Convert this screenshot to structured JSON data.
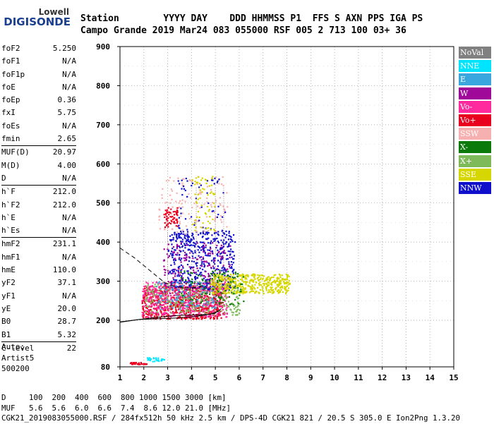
{
  "logo": {
    "line1": "Lowell",
    "line2": "DIGISONDE"
  },
  "header": {
    "line1": "Station        YYYY DAY    DDD HHMMSS P1  FFS S AXN PPS IGA PS",
    "line2": "Campo Grande 2019 Mar24 083 055000 RSF 005 2 713 100 03+ 36"
  },
  "params": {
    "group1": [
      {
        "label": "foF2",
        "value": "5.250"
      },
      {
        "label": "foF1",
        "value": "N/A"
      },
      {
        "label": "foF1p",
        "value": "N/A"
      },
      {
        "label": "foE",
        "value": "N/A"
      },
      {
        "label": "foEp",
        "value": "0.36"
      },
      {
        "label": "fxI",
        "value": "5.75"
      },
      {
        "label": "foEs",
        "value": "N/A"
      },
      {
        "label": "fmin",
        "value": "2.65"
      }
    ],
    "group2": [
      {
        "label": "MUF(D)",
        "value": "20.97"
      },
      {
        "label": "M(D)",
        "value": "4.00"
      },
      {
        "label": "D",
        "value": "N/A"
      }
    ],
    "group3": [
      {
        "label": "h`F",
        "value": "212.0"
      },
      {
        "label": "h`F2",
        "value": "212.0"
      },
      {
        "label": "h`E",
        "value": "N/A"
      },
      {
        "label": "h`Es",
        "value": "N/A"
      }
    ],
    "group4": [
      {
        "label": "hmF2",
        "value": "231.1"
      },
      {
        "label": "hmF1",
        "value": "N/A"
      },
      {
        "label": "hmE",
        "value": "110.0"
      },
      {
        "label": "yF2",
        "value": "37.1"
      },
      {
        "label": "yF1",
        "value": "N/A"
      },
      {
        "label": "yE",
        "value": "20.0"
      },
      {
        "label": "B0",
        "value": "28.7"
      },
      {
        "label": "B1",
        "value": "5.32"
      }
    ],
    "group5": [
      {
        "label": "C-level",
        "value": "22"
      }
    ]
  },
  "auto": {
    "line1": "Auto:",
    "line2": "Artist5",
    "line3": "500200"
  },
  "footer": {
    "line1": "D     100  200  400  600  800 1000 1500 3000 [km]",
    "line2": "MUF   5.6  5.6  6.0  6.6  7.4  8.6 12.0 21.0 [MHz]",
    "line3": "CGK21_2019083055000.RSF / 284fx512h 50 kHz 2.5 km / DPS-4D CGK21 821 / 20.5 S 305.0 E Ion2Png 1.3.20"
  },
  "legend": [
    {
      "label": "NoVal",
      "color": "#808080"
    },
    {
      "label": "NNE",
      "color": "#00e5ff"
    },
    {
      "label": "E",
      "color": "#3aa6e0"
    },
    {
      "label": "W",
      "color": "#a0089a"
    },
    {
      "label": "Vo-",
      "color": "#ff2a9e"
    },
    {
      "label": "Vo+",
      "color": "#e8001e"
    },
    {
      "label": "SSW",
      "color": "#f7b0b0"
    },
    {
      "label": "X-",
      "color": "#0a7a0a"
    },
    {
      "label": "X+",
      "color": "#7fba5a"
    },
    {
      "label": "SSE",
      "color": "#d6d600"
    },
    {
      "label": "NNW",
      "color": "#1010cc"
    }
  ],
  "chart_data": {
    "type": "scatter",
    "xlim": [
      1,
      15
    ],
    "ylim": [
      80,
      900
    ],
    "x_ticks": [
      1,
      2,
      3,
      4,
      5,
      6,
      7,
      8,
      9,
      10,
      11,
      12,
      13,
      14,
      15
    ],
    "y_ticks": [
      80,
      200,
      300,
      400,
      500,
      600,
      700,
      800,
      900
    ],
    "grid": true,
    "xlabel": "",
    "ylabel": "",
    "clusters": [
      {
        "series": "Vo+",
        "x_range": [
          1.9,
          5.3
        ],
        "y_range": [
          205,
          290
        ],
        "count": 700
      },
      {
        "series": "Vo-",
        "x_range": [
          1.9,
          5.5
        ],
        "y_range": [
          210,
          300
        ],
        "count": 500
      },
      {
        "series": "X+",
        "x_range": [
          2.0,
          6.0
        ],
        "y_range": [
          215,
          300
        ],
        "count": 250
      },
      {
        "series": "NNW",
        "x_range": [
          3.0,
          5.8
        ],
        "y_range": [
          280,
          430
        ],
        "count": 450
      },
      {
        "series": "W",
        "x_range": [
          2.8,
          5.6
        ],
        "y_range": [
          270,
          400
        ],
        "count": 200
      },
      {
        "series": "SSE",
        "x_range": [
          4.8,
          8.1
        ],
        "y_range": [
          270,
          320
        ],
        "count": 450
      },
      {
        "series": "X-",
        "x_range": [
          3.5,
          6.2
        ],
        "y_range": [
          240,
          330
        ],
        "count": 120
      },
      {
        "series": "E",
        "x_range": [
          2.5,
          5.0
        ],
        "y_range": [
          230,
          300
        ],
        "count": 100
      },
      {
        "series": "SSW",
        "x_range": [
          2.6,
          5.5
        ],
        "y_range": [
          420,
          570
        ],
        "count": 120
      },
      {
        "series": "Vo+",
        "x_range": [
          2.8,
          3.4
        ],
        "y_range": [
          440,
          490
        ],
        "count": 60
      },
      {
        "series": "NNW",
        "x_range": [
          3.4,
          5.4
        ],
        "y_range": [
          380,
          570
        ],
        "count": 80
      },
      {
        "series": "SSE",
        "x_range": [
          4.0,
          5.0
        ],
        "y_range": [
          430,
          570
        ],
        "count": 60
      },
      {
        "series": "NNE",
        "x_range": [
          2.1,
          2.9
        ],
        "y_range": [
          95,
          105
        ],
        "count": 30
      },
      {
        "series": "Vo+",
        "x_range": [
          1.4,
          2.1
        ],
        "y_range": [
          88,
          93
        ],
        "count": 30
      }
    ],
    "profile_curve": [
      [
        1.0,
        196
      ],
      [
        1.8,
        202
      ],
      [
        2.6,
        204
      ],
      [
        3.4,
        206
      ],
      [
        4.2,
        210
      ],
      [
        4.8,
        216
      ],
      [
        5.1,
        222
      ],
      [
        5.25,
        230
      ]
    ],
    "dashed_curve": [
      [
        1.0,
        385
      ],
      [
        1.6,
        360
      ],
      [
        2.4,
        320
      ],
      [
        2.9,
        295
      ],
      [
        3.4,
        285
      ],
      [
        4.0,
        282
      ],
      [
        4.6,
        290
      ]
    ],
    "trace_curve": [
      [
        1.0,
        195
      ],
      [
        1.8,
        202
      ],
      [
        2.6,
        208
      ],
      [
        3.4,
        212
      ],
      [
        4.2,
        214
      ],
      [
        4.7,
        215
      ],
      [
        5.0,
        218
      ],
      [
        5.1,
        225
      ]
    ]
  }
}
